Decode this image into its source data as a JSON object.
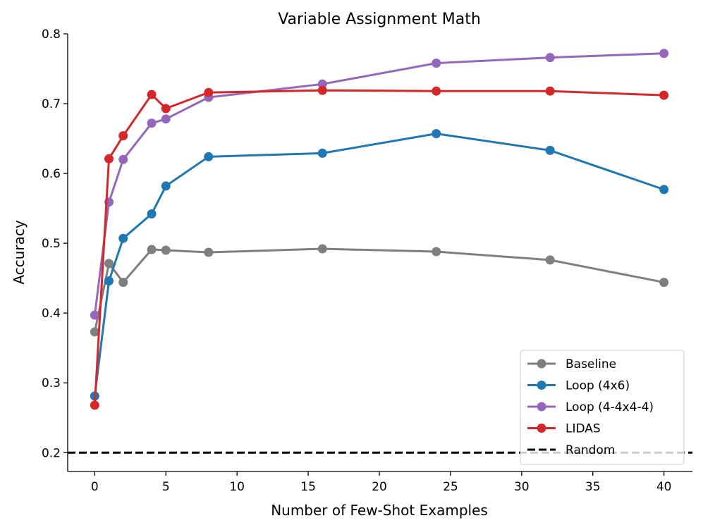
{
  "chart_data": {
    "type": "line",
    "title": "Variable Assignment Math",
    "xlabel": "Number of Few-Shot Examples",
    "ylabel": "Accuracy",
    "xlim": [
      -1.9,
      42
    ],
    "ylim": [
      0.173,
      0.8
    ],
    "xticks": [
      0,
      5,
      10,
      15,
      20,
      25,
      30,
      35,
      40
    ],
    "yticks": [
      0.2,
      0.3,
      0.4,
      0.5,
      0.6,
      0.7,
      0.8
    ],
    "xtick_labels": [
      "0",
      "5",
      "10",
      "15",
      "20",
      "25",
      "30",
      "35",
      "40"
    ],
    "ytick_labels": [
      "0.2",
      "0.3",
      "0.4",
      "0.5",
      "0.6",
      "0.7",
      "0.8"
    ],
    "grid": false,
    "legend_position": "lower-right",
    "x": [
      0,
      1,
      2,
      4,
      5,
      8,
      16,
      24,
      32,
      40
    ],
    "series": [
      {
        "name": "Baseline",
        "color": "#7f7f7f",
        "values": [
          0.373,
          0.471,
          0.444,
          0.491,
          0.49,
          0.487,
          0.492,
          0.488,
          0.476,
          0.444
        ]
      },
      {
        "name": "Loop (4x6)",
        "color": "#1f77b4",
        "values": [
          0.281,
          0.446,
          0.507,
          0.542,
          0.582,
          0.624,
          0.629,
          0.657,
          0.633,
          0.577
        ]
      },
      {
        "name": "Loop (4-4x4-4)",
        "color": "#9467bd",
        "values": [
          0.397,
          0.559,
          0.62,
          0.672,
          0.678,
          0.709,
          0.728,
          0.758,
          0.766,
          0.772
        ]
      },
      {
        "name": "LIDAS",
        "color": "#d62728",
        "values": [
          0.268,
          0.621,
          0.654,
          0.713,
          0.693,
          0.716,
          0.719,
          0.718,
          0.718,
          0.712
        ]
      }
    ],
    "reference_line": {
      "name": "Random",
      "y": 0.2,
      "color": "#000000",
      "style": "dashed"
    }
  }
}
